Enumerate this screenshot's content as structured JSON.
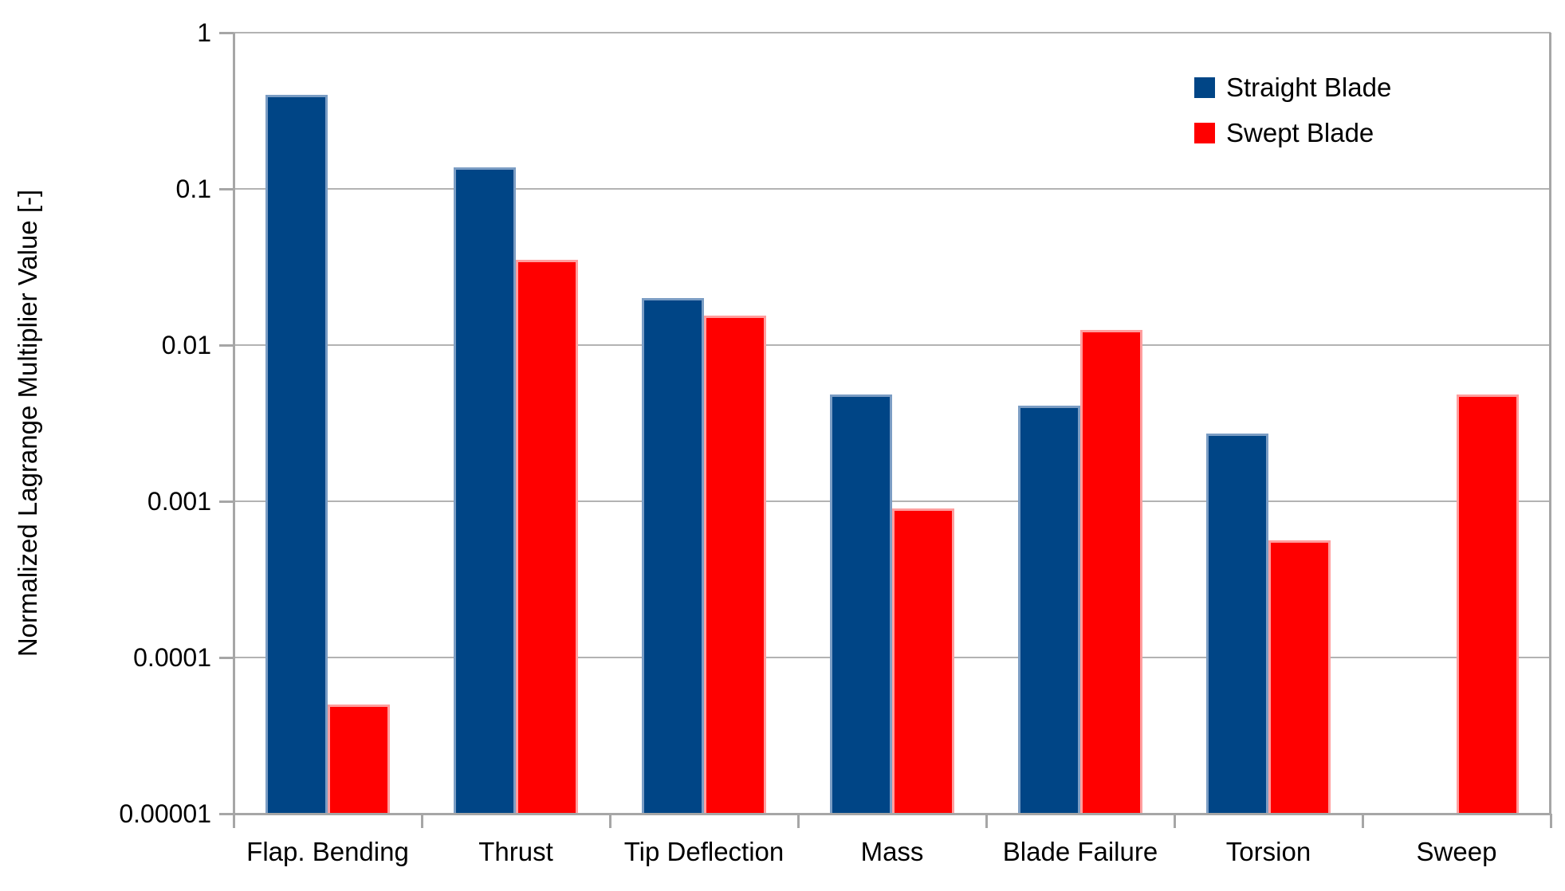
{
  "chart_data": {
    "type": "bar",
    "title": "",
    "xlabel": "",
    "ylabel": "Normalized Lagrange Multiplier Value [-]",
    "y_scale": "log",
    "ylim": [
      1e-05,
      1
    ],
    "ytick_labels": [
      "1",
      "0.1",
      "0.01",
      "0.001",
      "0.0001",
      "0.00001"
    ],
    "grid": "horizontal",
    "legend_position": "top-right",
    "categories": [
      "Flap. Bending",
      "Thrust",
      "Tip Deflection",
      "Mass",
      "Blade Failure",
      "Torsion",
      "Sweep"
    ],
    "series": [
      {
        "name": "Straight Blade",
        "color": "#004586",
        "values": [
          0.4,
          0.137,
          0.02,
          0.0048,
          0.0041,
          0.0027,
          null
        ]
      },
      {
        "name": "Swept Blade",
        "color": "#FF0000",
        "values": [
          5e-05,
          0.035,
          0.0155,
          0.0009,
          0.0125,
          0.00056,
          0.0048
        ]
      }
    ]
  }
}
